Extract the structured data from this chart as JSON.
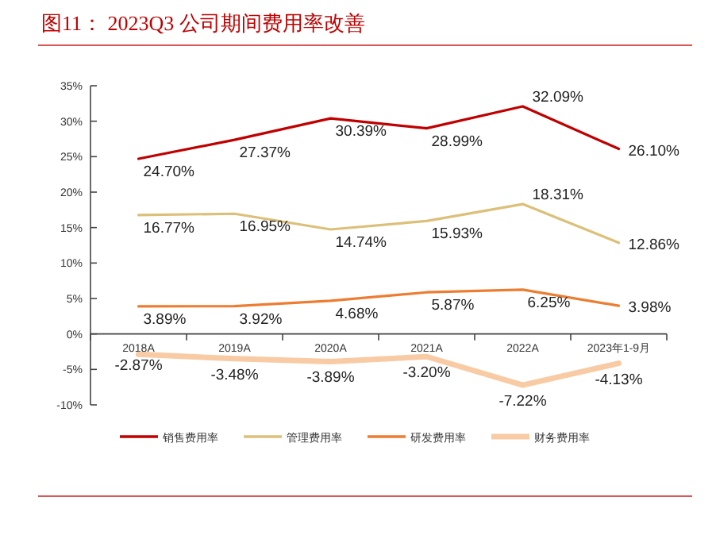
{
  "chart_data": {
    "type": "line",
    "title": "图11：  2023Q3 公司期间费用率改善",
    "categories": [
      "2018A",
      "2019A",
      "2020A",
      "2021A",
      "2022A",
      "2023年1-9月"
    ],
    "series": [
      {
        "name": "销售费用率",
        "color": "#c00000",
        "values": [
          24.7,
          27.37,
          30.39,
          28.99,
          32.09,
          26.1
        ],
        "value_labels": [
          "24.70%",
          "27.37%",
          "30.39%",
          "28.99%",
          "32.09%",
          "26.10%"
        ]
      },
      {
        "name": "管理费用率",
        "color": "#dcc07a",
        "values": [
          16.77,
          16.95,
          14.74,
          15.93,
          18.31,
          12.86
        ],
        "value_labels": [
          "16.77%",
          "16.95%",
          "14.74%",
          "15.93%",
          "18.31%",
          "12.86%"
        ]
      },
      {
        "name": "研发费用率",
        "color": "#ed7d31",
        "values": [
          3.89,
          3.92,
          4.68,
          5.87,
          6.25,
          3.98
        ],
        "value_labels": [
          "3.89%",
          "3.92%",
          "4.68%",
          "5.87%",
          "6.25%",
          "3.98%"
        ]
      },
      {
        "name": "财务费用率",
        "color": "#f8cba4",
        "values": [
          -2.87,
          -3.48,
          -3.89,
          -3.2,
          -7.22,
          -4.13
        ],
        "value_labels": [
          "-2.87%",
          "-3.48%",
          "-3.89%",
          "-3.20%",
          "-7.22%",
          "-4.13%"
        ]
      }
    ],
    "ylim": [
      -10,
      35
    ],
    "yticks": [
      {
        "value": -10,
        "label": "-10%"
      },
      {
        "value": -5,
        "label": "-5%"
      },
      {
        "value": 0,
        "label": "0%"
      },
      {
        "value": 5,
        "label": "5%"
      },
      {
        "value": 10,
        "label": "10%"
      },
      {
        "value": 15,
        "label": "15%"
      },
      {
        "value": 20,
        "label": "20%"
      },
      {
        "value": 25,
        "label": "25%"
      },
      {
        "value": 30,
        "label": "30%"
      },
      {
        "value": 35,
        "label": "35%"
      }
    ],
    "legend": "bottom",
    "grid": false,
    "marker": "none",
    "line_style": "solid"
  }
}
